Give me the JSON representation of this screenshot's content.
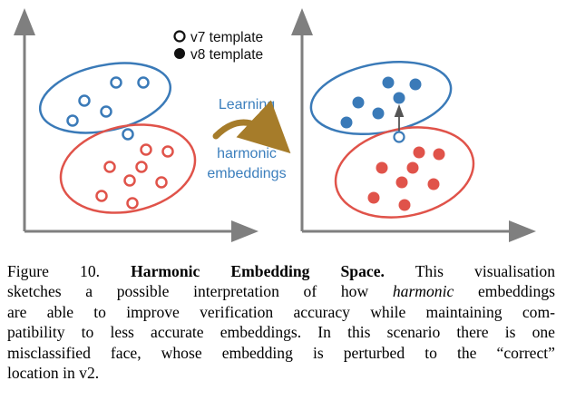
{
  "legend": {
    "v7_label": "v7 template",
    "v8_label": "v8 template"
  },
  "arrow": {
    "line1": "Learning",
    "line2": "harmonic",
    "line3": "embeddings"
  },
  "colors": {
    "blue": "#3a7ab8",
    "red": "#e0534a",
    "axis": "#7f7f7f",
    "arrow_gold": "#a67c2a",
    "text_blue": "#3c7fbd"
  },
  "caption": {
    "figure_label": "Figure 10.",
    "title": "Harmonic Embedding Space.",
    "line1_rest": "This visualisation",
    "line2_pre": "sketches a possible interpretation of how",
    "line2_em": "harmonic",
    "line2_post": "embeddings",
    "line3": "are able to improve verification accuracy while maintaining com-",
    "line4": "patibility to less accurate embeddings. In this scenario there is one",
    "line5": "misclassified face, whose embedding is perturbed to the “correct”",
    "line6": "location in v2."
  }
}
